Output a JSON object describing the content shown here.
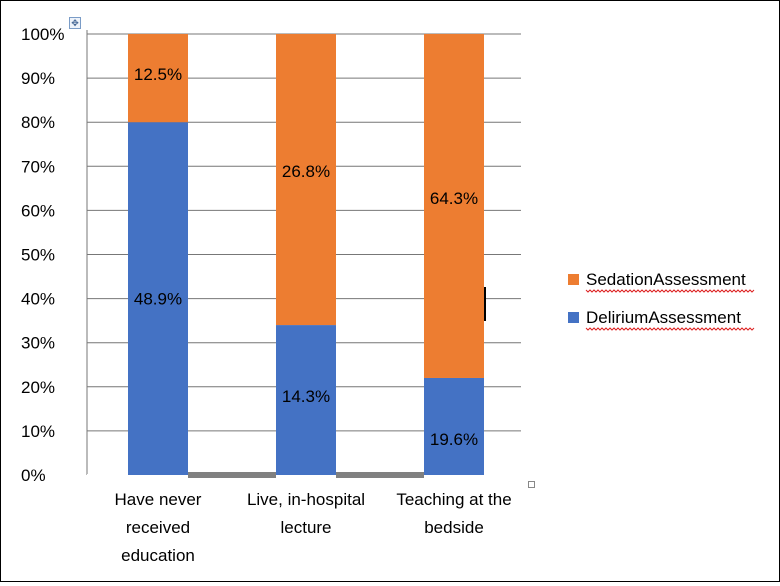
{
  "chart_data": {
    "type": "bar",
    "stacked": true,
    "categories": [
      [
        "Have never",
        "received",
        "education"
      ],
      [
        "Live,  in-hospital",
        "lecture"
      ],
      [
        "Teaching  at the",
        "bedside"
      ]
    ],
    "series": [
      {
        "name": "DeliriumAssessment",
        "color": "#4472c4",
        "values": [
          80,
          34,
          22
        ],
        "labels": [
          "48.9%",
          "14.3%",
          "19.6%"
        ]
      },
      {
        "name": "SedationAssessment",
        "color": "#ed7d31",
        "values": [
          20,
          66,
          78
        ],
        "labels": [
          "12.5%",
          "26.8%",
          "64.3%"
        ]
      }
    ],
    "yticks": [
      "0%",
      "10%",
      "20%",
      "30%",
      "40%",
      "50%",
      "60%",
      "70%",
      "80%",
      "90%",
      "100%"
    ],
    "ylim": [
      0,
      100
    ],
    "grid": true,
    "legend": "right",
    "gridline_color": "#777777"
  }
}
